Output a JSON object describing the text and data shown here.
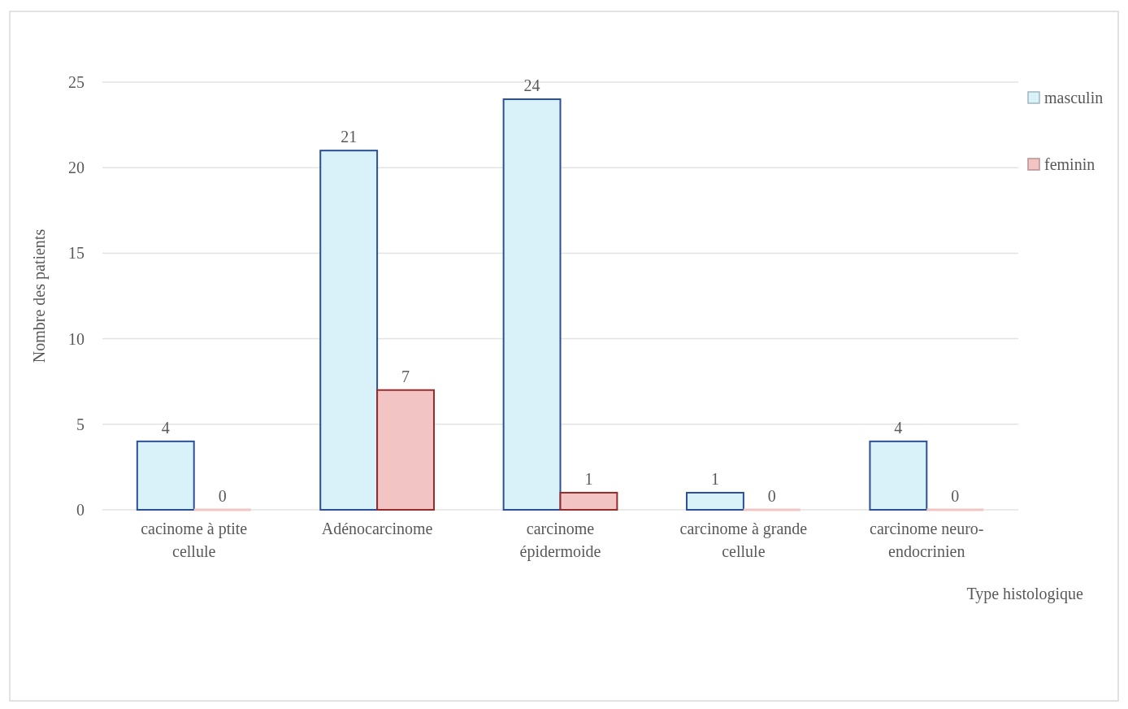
{
  "chart_data": {
    "type": "bar",
    "xlabel": "Type histologique",
    "ylabel": "Nombre des patients",
    "categories": [
      "cacinome à ptite cellule",
      "Adénocarcinome",
      "carcinome épidermoide",
      "carcinome à grande cellule",
      "carcinome neuro-endocrinien"
    ],
    "series": [
      {
        "name": "masculin",
        "color": "#d9f2fa",
        "values": [
          4,
          21,
          24,
          1,
          4
        ]
      },
      {
        "name": "feminin",
        "color": "#f2c4c4",
        "values": [
          0,
          7,
          1,
          0,
          0
        ]
      }
    ],
    "ylim": [
      0,
      25
    ],
    "yticks": [
      0,
      5,
      10,
      15,
      20,
      25
    ],
    "grid": "y",
    "legend": "right",
    "data_labels": true
  }
}
